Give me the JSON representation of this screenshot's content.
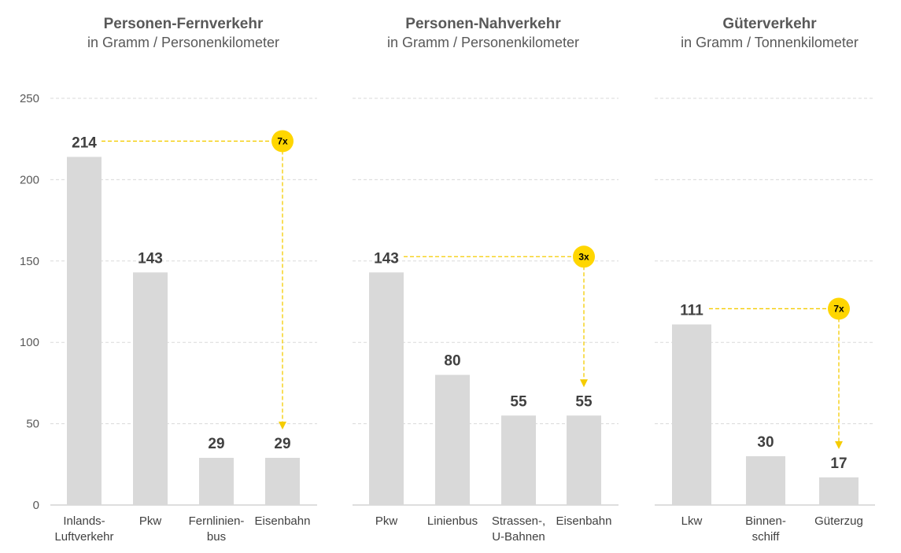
{
  "chart_data": [
    {
      "type": "bar",
      "title": "Personen-Fernverkehr",
      "subtitle": "in Gramm / Personenkilometer",
      "categories": [
        "Inlands-\nLuftverkehr",
        "Pkw",
        "Fernlinien-\nbus",
        "Eisenbahn"
      ],
      "values": [
        214,
        143,
        29,
        29
      ],
      "ylim": [
        0,
        250
      ],
      "yticks": [
        0,
        50,
        100,
        150,
        200,
        250
      ],
      "grid": true,
      "annotations": [
        {
          "text": "7x",
          "from_index": 0,
          "to_index": 3
        }
      ]
    },
    {
      "type": "bar",
      "title": "Personen-Nahverkehr",
      "subtitle": "in Gramm / Personenkilometer",
      "categories": [
        "Pkw",
        "Linienbus",
        "Strassen-,\nU-Bahnen",
        "Eisenbahn"
      ],
      "values": [
        143,
        80,
        55,
        55
      ],
      "ylim": [
        0,
        250
      ],
      "grid": true,
      "annotations": [
        {
          "text": "3x",
          "from_index": 0,
          "to_index": 3
        }
      ]
    },
    {
      "type": "bar",
      "title": "Güterverkehr",
      "subtitle": "in Gramm / Tonnenkilometer",
      "categories": [
        "Lkw",
        "Binnen-\nschiff",
        "Güterzug"
      ],
      "values": [
        111,
        30,
        17
      ],
      "ylim": [
        0,
        250
      ],
      "grid": true,
      "annotations": [
        {
          "text": "7x",
          "from_index": 0,
          "to_index": 2
        }
      ]
    }
  ],
  "colors": {
    "bar": "#d9d9d9",
    "accent": "#ffd600",
    "connector": "#f5cc00",
    "text": "#404040"
  }
}
